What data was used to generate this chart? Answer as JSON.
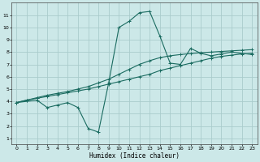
{
  "title": "",
  "xlabel": "Humidex (Indice chaleur)",
  "background_color": "#cce8e8",
  "grid_color": "#aacccc",
  "line_color": "#1a6b60",
  "xlim": [
    -0.5,
    23.5
  ],
  "ylim": [
    0.5,
    12.0
  ],
  "xticks": [
    0,
    1,
    2,
    3,
    4,
    5,
    6,
    7,
    8,
    9,
    10,
    11,
    12,
    13,
    14,
    15,
    16,
    17,
    18,
    19,
    20,
    21,
    22,
    23
  ],
  "yticks": [
    1,
    2,
    3,
    4,
    5,
    6,
    7,
    8,
    9,
    10,
    11
  ],
  "line1_x": [
    0,
    1,
    2,
    3,
    4,
    5,
    6,
    7,
    8,
    9,
    10,
    11,
    12,
    13,
    14,
    15,
    16,
    17,
    18,
    19,
    20,
    21,
    22,
    23
  ],
  "line1_y": [
    3.9,
    4.1,
    4.25,
    4.4,
    4.55,
    4.7,
    4.85,
    5.0,
    5.2,
    5.4,
    5.6,
    5.8,
    6.0,
    6.2,
    6.5,
    6.7,
    6.9,
    7.1,
    7.3,
    7.5,
    7.65,
    7.75,
    7.85,
    7.9
  ],
  "line2_x": [
    0,
    1,
    2,
    3,
    4,
    5,
    6,
    7,
    8,
    9,
    10,
    11,
    12,
    13,
    14,
    15,
    16,
    17,
    18,
    19,
    20,
    21,
    22,
    23
  ],
  "line2_y": [
    3.9,
    4.1,
    4.3,
    4.5,
    4.65,
    4.8,
    5.0,
    5.2,
    5.5,
    5.8,
    6.2,
    6.6,
    7.0,
    7.3,
    7.55,
    7.7,
    7.8,
    7.88,
    7.95,
    8.0,
    8.05,
    8.1,
    8.15,
    8.2
  ],
  "line3_x": [
    0,
    2,
    3,
    4,
    5,
    6,
    7,
    8,
    9,
    10,
    11,
    12,
    13,
    14,
    15,
    16,
    17,
    18,
    19,
    20,
    21,
    22,
    23
  ],
  "line3_y": [
    3.9,
    4.1,
    3.5,
    3.7,
    3.9,
    3.5,
    1.8,
    1.5,
    5.5,
    10.0,
    10.5,
    11.2,
    11.3,
    9.3,
    7.1,
    7.0,
    8.3,
    7.9,
    7.7,
    7.85,
    8.0,
    7.9,
    7.8
  ]
}
